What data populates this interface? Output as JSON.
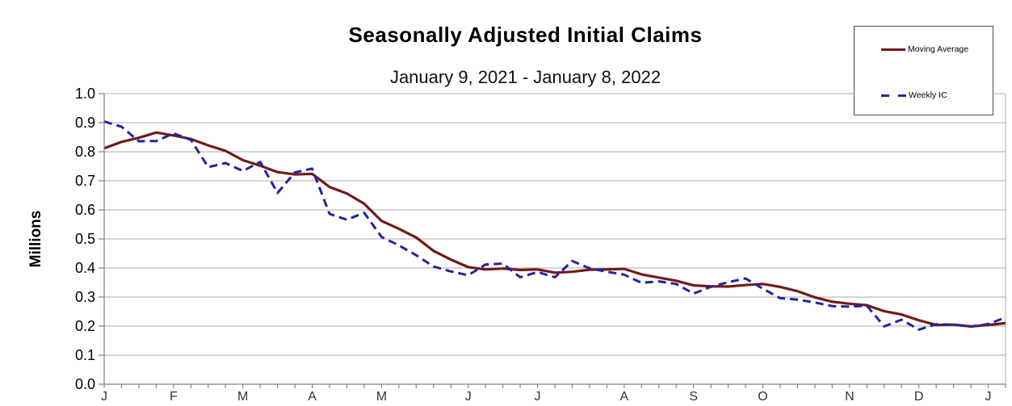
{
  "title": "Seasonally Adjusted Initial Claims",
  "subtitle": "January 9, 2021 - January 8, 2022",
  "y_axis_label": "Millions",
  "legend": {
    "moving_average_label": "Moving Average",
    "weekly_ic_label": "Weekly IC"
  },
  "colors": {
    "moving_average": "#731A1A",
    "weekly_ic": "#2323A5",
    "gridline": "#ABABAB",
    "axis": "#7F7F7F",
    "y_tick_label": "#000000",
    "month_label": "#333333",
    "legend_border": "#4D4D4D",
    "background": "#FFFFFF"
  },
  "chart_data": {
    "type": "line",
    "title": "Seasonally Adjusted Initial Claims",
    "subtitle": "January 9, 2021 - January 8, 2022",
    "ylabel": "Millions",
    "ylim": [
      0.0,
      1.0
    ],
    "y_ticks": [
      0.0,
      0.1,
      0.2,
      0.3,
      0.4,
      0.5,
      0.6,
      0.7,
      0.8,
      0.9,
      1.0
    ],
    "grid": "horizontal",
    "legend_position": "top-right",
    "x_unit": "weekly, January 9, 2021 - January 8, 2022",
    "n_points": 53,
    "month_tick_labels": [
      "J",
      "F",
      "M",
      "A",
      "M",
      "J",
      "J",
      "A",
      "S",
      "O",
      "N",
      "D",
      "J"
    ],
    "month_tick_week_index": [
      0,
      4,
      8,
      12,
      16,
      21,
      25,
      30,
      34,
      38,
      43,
      47,
      51
    ],
    "series": [
      {
        "name": "Moving Average",
        "style": "solid",
        "color": "#731A1A",
        "values": [
          0.812,
          0.834,
          0.848,
          0.866,
          0.856,
          0.844,
          0.822,
          0.803,
          0.771,
          0.752,
          0.73,
          0.722,
          0.724,
          0.679,
          0.656,
          0.621,
          0.562,
          0.535,
          0.505,
          0.459,
          0.429,
          0.403,
          0.395,
          0.398,
          0.393,
          0.395,
          0.384,
          0.387,
          0.394,
          0.395,
          0.397,
          0.378,
          0.367,
          0.356,
          0.34,
          0.337,
          0.336,
          0.341,
          0.345,
          0.335,
          0.32,
          0.299,
          0.284,
          0.277,
          0.272,
          0.251,
          0.24,
          0.22,
          0.204,
          0.205,
          0.199,
          0.204,
          0.21
        ]
      },
      {
        "name": "Weekly IC",
        "style": "dashed",
        "color": "#2323A5",
        "values": [
          0.904,
          0.886,
          0.836,
          0.837,
          0.863,
          0.841,
          0.747,
          0.761,
          0.734,
          0.765,
          0.658,
          0.729,
          0.742,
          0.586,
          0.566,
          0.59,
          0.507,
          0.478,
          0.444,
          0.405,
          0.388,
          0.375,
          0.412,
          0.415,
          0.368,
          0.386,
          0.368,
          0.424,
          0.399,
          0.387,
          0.377,
          0.349,
          0.354,
          0.345,
          0.312,
          0.335,
          0.351,
          0.364,
          0.329,
          0.296,
          0.291,
          0.281,
          0.269,
          0.267,
          0.27,
          0.199,
          0.222,
          0.188,
          0.206,
          0.205,
          0.198,
          0.207,
          0.23
        ]
      }
    ]
  }
}
